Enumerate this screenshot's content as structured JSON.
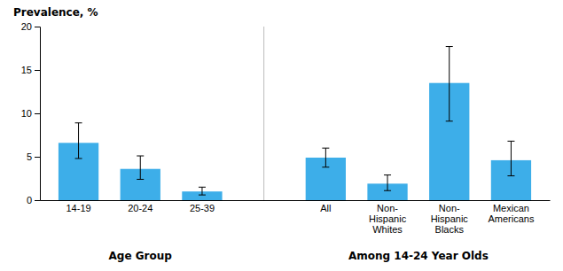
{
  "chart_data": {
    "type": "bar",
    "title": "Prevalence, %",
    "color": "#3daee9",
    "ylim": [
      0,
      20
    ],
    "yticks": [
      0,
      5,
      10,
      15,
      20
    ],
    "grid": false,
    "groups": [
      {
        "label": "Age Group",
        "categories": [
          "14-19",
          "20-24",
          "25-39"
        ],
        "values": [
          6.6,
          3.6,
          1.0
        ],
        "error_low": [
          1.8,
          1.2,
          0.4
        ],
        "error_high": [
          2.3,
          1.5,
          0.5
        ]
      },
      {
        "label": "Among 14-24 Year Olds",
        "categories": [
          "All",
          "Non-\nHispanic\nWhites",
          "Non-\nHispanic\nBlacks",
          "Mexican\nAmericans"
        ],
        "values": [
          4.9,
          1.9,
          13.5,
          4.6
        ],
        "error_low": [
          1.1,
          0.8,
          4.4,
          1.8
        ],
        "error_high": [
          1.1,
          1.0,
          4.2,
          2.2
        ]
      }
    ]
  }
}
